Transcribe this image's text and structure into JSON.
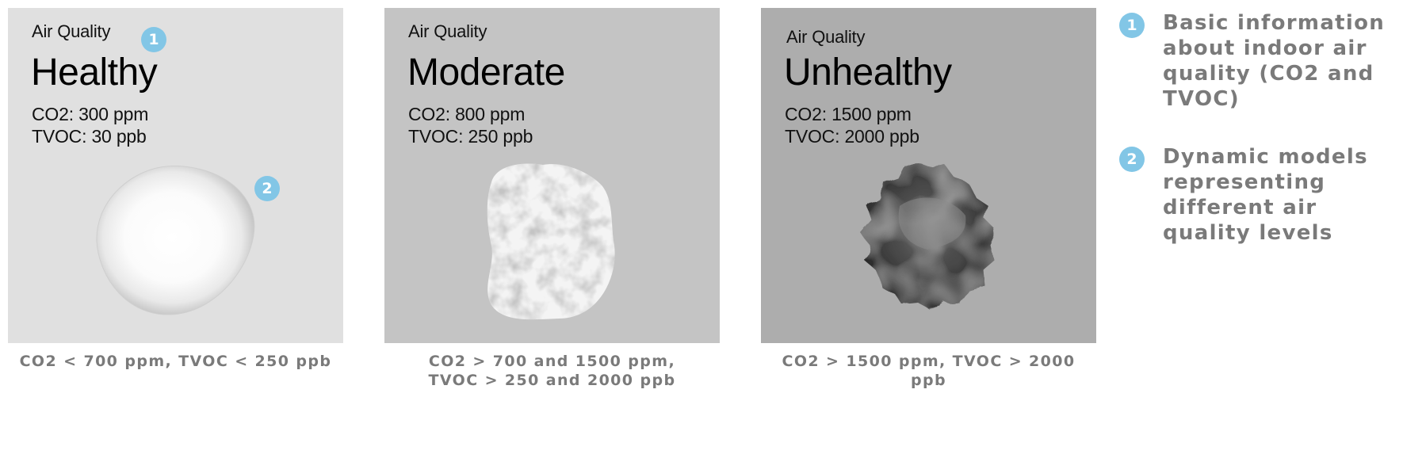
{
  "panels": [
    {
      "id": "healthy",
      "heading": "Air Quality",
      "status": "Healthy",
      "co2": "CO2: 300 ppm",
      "tvoc": "TVOC: 30 ppb",
      "background": "#e0e0e0",
      "caption": "CO2 < 700 ppm, TVOC < 250 ppb"
    },
    {
      "id": "moderate",
      "heading": "Air Quality",
      "status": "Moderate",
      "co2": "CO2: 800 ppm",
      "tvoc": "TVOC: 250 ppb",
      "background": "#c4c4c4",
      "caption_line1": "CO2 > 700 and 1500 ppm,",
      "caption_line2": "TVOC > 250 and 2000 ppb"
    },
    {
      "id": "unhealthy",
      "heading": "Air Quality",
      "status": "Unhealthy",
      "co2": "CO2: 1500 ppm",
      "tvoc": "TVOC: 2000 ppb",
      "background": "#adadad",
      "caption": "CO2 > 1500 ppm, TVOC > 2000 ppb"
    }
  ],
  "callouts": {
    "badge_color": "#82c6e6",
    "one": "1",
    "two": "2"
  },
  "legend": [
    {
      "number": "1",
      "text": "Basic information about indoor air quality (CO2 and TVOC)"
    },
    {
      "number": "2",
      "text": "Dynamic models representing different air quality levels"
    }
  ],
  "blob_icons": [
    "smooth-white-blob-icon",
    "mottled-grey-blob-icon",
    "jagged-dark-blob-icon"
  ]
}
